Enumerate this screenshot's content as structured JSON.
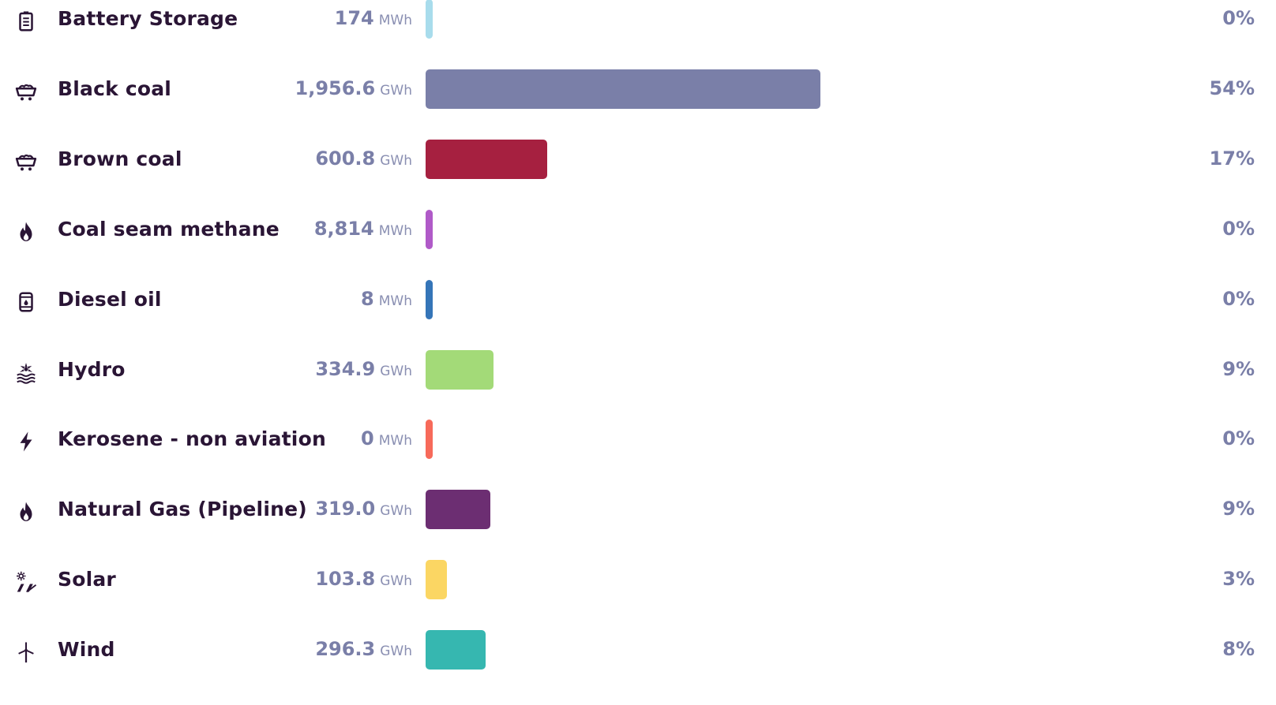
{
  "chart_data": {
    "type": "bar",
    "orientation": "horizontal",
    "title": "",
    "xlabel": "",
    "ylabel": "",
    "categories": [
      "Battery Storage",
      "Black coal",
      "Brown coal",
      "Coal seam methane",
      "Diesel oil",
      "Hydro",
      "Kerosene - non aviation",
      "Natural Gas (Pipeline)",
      "Solar",
      "Wind"
    ],
    "values_gwh": [
      0.174,
      1956.6,
      600.8,
      8.814,
      0.008,
      334.9,
      0,
      319.0,
      103.8,
      296.3
    ],
    "rows": [
      {
        "label": "Battery Storage",
        "value": "174",
        "unit": "MWh",
        "percent": "0%",
        "value_gwh": 0.174,
        "color": "#a8dcec",
        "icon": "battery-icon"
      },
      {
        "label": "Black coal",
        "value": "1,956.6",
        "unit": "GWh",
        "percent": "54%",
        "value_gwh": 1956.6,
        "color": "#7a7fa8",
        "icon": "coal-cart-icon"
      },
      {
        "label": "Brown coal",
        "value": "600.8",
        "unit": "GWh",
        "percent": "17%",
        "value_gwh": 600.8,
        "color": "#a62040",
        "icon": "coal-cart-icon"
      },
      {
        "label": "Coal seam methane",
        "value": "8,814",
        "unit": "MWh",
        "percent": "0%",
        "value_gwh": 8.814,
        "color": "#b05ac8",
        "icon": "flame-icon"
      },
      {
        "label": "Diesel oil",
        "value": "8",
        "unit": "MWh",
        "percent": "0%",
        "value_gwh": 0.008,
        "color": "#3575b8",
        "icon": "oil-barrel-icon"
      },
      {
        "label": "Hydro",
        "value": "334.9",
        "unit": "GWh",
        "percent": "9%",
        "value_gwh": 334.9,
        "color": "#a3da78",
        "icon": "hydro-turbine-icon"
      },
      {
        "label": "Kerosene - non aviation",
        "value": "0",
        "unit": "MWh",
        "percent": "0%",
        "value_gwh": 0,
        "color": "#f76a5a",
        "icon": "lightning-bolt-icon"
      },
      {
        "label": "Natural Gas (Pipeline)",
        "value": "319.0",
        "unit": "GWh",
        "percent": "9%",
        "value_gwh": 319.0,
        "color": "#6c2e72",
        "icon": "flame-icon"
      },
      {
        "label": "Solar",
        "value": "103.8",
        "unit": "GWh",
        "percent": "3%",
        "value_gwh": 103.8,
        "color": "#fbd663",
        "icon": "solar-panel-icon"
      },
      {
        "label": "Wind",
        "value": "296.3",
        "unit": "GWh",
        "percent": "8%",
        "value_gwh": 296.3,
        "color": "#36b7b0",
        "icon": "wind-turbine-icon"
      }
    ]
  }
}
